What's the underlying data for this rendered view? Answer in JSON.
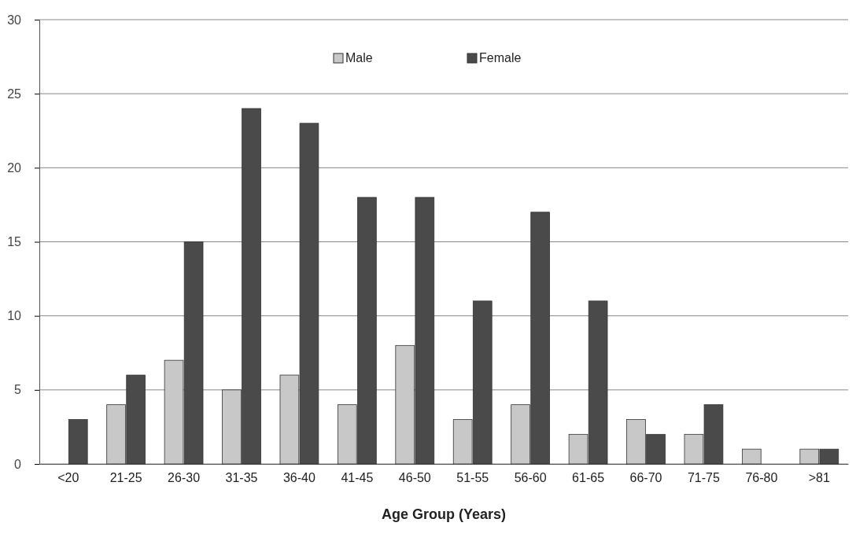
{
  "chart_data": {
    "type": "bar",
    "xlabel": "Age Group (Years)",
    "categories": [
      "<20",
      "21-25",
      "26-30",
      "31-35",
      "36-40",
      "41-45",
      "46-50",
      "51-55",
      "56-60",
      "61-65",
      "66-70",
      "71-75",
      "76-80",
      ">81"
    ],
    "series": [
      {
        "name": "Male",
        "color": "#c8c8c8",
        "values": [
          0,
          4,
          7,
          5,
          6,
          4,
          8,
          3,
          4,
          2,
          3,
          2,
          1,
          1
        ]
      },
      {
        "name": "Female",
        "color": "#4a4a4a",
        "values": [
          3,
          6,
          15,
          24,
          23,
          18,
          18,
          11,
          17,
          11,
          2,
          4,
          0,
          1
        ]
      }
    ],
    "ylim": [
      0,
      30
    ],
    "yticks": [
      0,
      5,
      10,
      15,
      20,
      25,
      30
    ],
    "grid": "y",
    "legend": "top"
  }
}
